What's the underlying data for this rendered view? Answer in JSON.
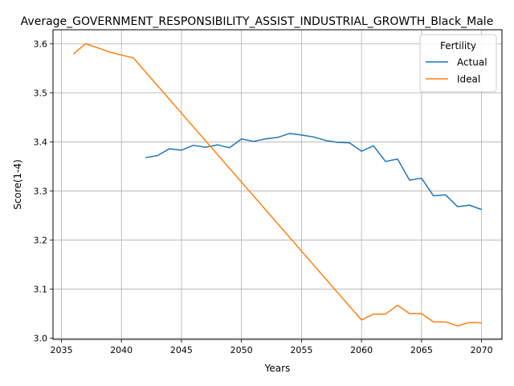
{
  "chart_data": {
    "type": "line",
    "title": "Average_GOVERNMENT_RESPONSIBILITY_ASSIST_INDUSTRIAL_GROWTH_Black_Male",
    "xlabel": "Years",
    "ylabel": "Score(1-4)",
    "xlim": [
      2034.3,
      2071.7
    ],
    "ylim": [
      2.9975,
      3.6285
    ],
    "xticks": [
      2035,
      2040,
      2045,
      2050,
      2055,
      2060,
      2065,
      2070
    ],
    "yticks": [
      3.0,
      3.1,
      3.2,
      3.3,
      3.4,
      3.5,
      3.6
    ],
    "grid": true,
    "legend": {
      "title": "Fertility",
      "position": "top-right"
    },
    "series": [
      {
        "name": "Actual",
        "color": "#1f77b4",
        "x": [
          2042,
          2043,
          2044,
          2045,
          2046,
          2047,
          2048,
          2049,
          2050,
          2051,
          2052,
          2053,
          2054,
          2055,
          2056,
          2057,
          2058,
          2059,
          2060,
          2061,
          2062,
          2063,
          2064,
          2065,
          2066,
          2067,
          2068,
          2069,
          2070
        ],
        "y": [
          3.368,
          3.372,
          3.386,
          3.383,
          3.393,
          3.389,
          3.394,
          3.388,
          3.406,
          3.401,
          3.406,
          3.409,
          3.417,
          3.414,
          3.41,
          3.403,
          3.399,
          3.398,
          3.381,
          3.392,
          3.36,
          3.365,
          3.322,
          3.326,
          3.29,
          3.292,
          3.268,
          3.271,
          3.262
        ]
      },
      {
        "name": "Ideal",
        "color": "#ff7f0e",
        "x": [
          2036,
          2037,
          2038,
          2039,
          2040,
          2041,
          2060,
          2061,
          2062,
          2063,
          2064,
          2065,
          2066,
          2067,
          2068,
          2069,
          2070
        ],
        "y": [
          3.579,
          3.6,
          3.592,
          3.583,
          3.577,
          3.571,
          3.037,
          3.049,
          3.049,
          3.067,
          3.05,
          3.05,
          3.033,
          3.033,
          3.025,
          3.032,
          3.031
        ]
      }
    ]
  }
}
